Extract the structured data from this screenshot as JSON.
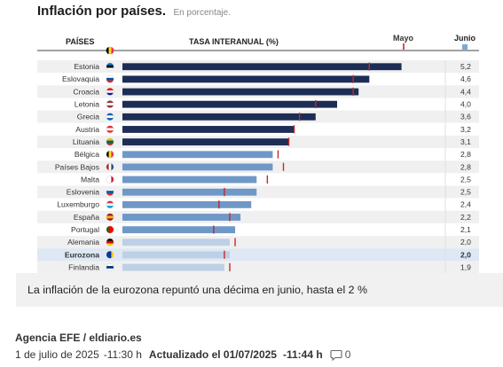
{
  "header": {
    "title": "Inflación por países.",
    "subtitle": "En porcentaje.",
    "col_countries": "PAÍSES",
    "col_rate": "TASA INTERANUAL (%)",
    "col_may": "Mayo",
    "col_june": "Junio"
  },
  "chart_data": {
    "type": "bar",
    "orientation": "horizontal",
    "xlim": [
      0,
      5.4
    ],
    "categories": [
      "Estonia",
      "Eslovaquia",
      "Croacia",
      "Letonia",
      "Grecia",
      "Austria",
      "Lituania",
      "Bélgica",
      "Países Bajos",
      "Malta",
      "Eslovenia",
      "Luxemburgo",
      "España",
      "Portugal",
      "Alemania",
      "Eurozona",
      "Finlandia"
    ],
    "value_labels": [
      "5,2",
      "4,6",
      "4,4",
      "4,0",
      "3,6",
      "3,2",
      "3,1",
      "2,8",
      "2,8",
      "2,5",
      "2,5",
      "2,4",
      "2,2",
      "2,1",
      "2,0",
      "2,0",
      "1,9"
    ],
    "series": [
      {
        "name": "Junio",
        "values": [
          5.2,
          4.6,
          4.4,
          4.0,
          3.6,
          3.2,
          3.1,
          2.8,
          2.8,
          2.5,
          2.5,
          2.4,
          2.2,
          2.1,
          2.0,
          2.0,
          1.9
        ]
      },
      {
        "name": "Mayo",
        "values": [
          4.6,
          4.3,
          4.3,
          3.6,
          3.3,
          3.2,
          3.1,
          2.9,
          3.0,
          2.7,
          1.9,
          1.8,
          2.0,
          1.7,
          2.1,
          1.9,
          2.0
        ]
      }
    ],
    "colors": {
      "high": "#1e2d55",
      "mid": "#6f98c8",
      "low": "#bdd0e6",
      "highlight_row": "#dde8f4",
      "may_marker": "#c62828",
      "june_legend": "#7ea8d8"
    },
    "flags": [
      [
        "#0072ce",
        "#000000",
        "#ffffff"
      ],
      [
        "#ffffff",
        "#0b4ea2",
        "#ee1c25"
      ],
      [
        "#ff0000",
        "#ffffff",
        "#171796"
      ],
      [
        "#9e3039",
        "#ffffff",
        "#9e3039"
      ],
      [
        "#0d5eaf",
        "#ffffff",
        "#0d5eaf"
      ],
      [
        "#ed2939",
        "#ffffff",
        "#ed2939"
      ],
      [
        "#fdb913",
        "#006a44",
        "#c1272d"
      ],
      [
        "#000000",
        "#fdda24",
        "#ef3340"
      ],
      [
        "#ae1c28",
        "#ffffff",
        "#21468b"
      ],
      [
        "#ffffff",
        "#ffffff",
        "#cf142b"
      ],
      [
        "#ffffff",
        "#005da4",
        "#ed1c24"
      ],
      [
        "#ed2939",
        "#ffffff",
        "#00a1de"
      ],
      [
        "#aa151b",
        "#f1bf00",
        "#aa151b"
      ],
      [
        "#006600",
        "#ff0000",
        "#ff0000"
      ],
      [
        "#000000",
        "#dd0000",
        "#ffce00"
      ],
      [
        "#003399",
        "#003399",
        "#ffcc00"
      ],
      [
        "#ffffff",
        "#003580",
        "#ffffff"
      ]
    ],
    "bold_categories": [
      "Eurozona"
    ]
  },
  "caption": "La inflación de la eurozona repuntó una décima en junio, hasta el 2 %",
  "article": {
    "source": "Agencia EFE / eldiario.es",
    "date": "1 de julio de 2025",
    "time": "-11:30 h",
    "updated": "Actualizado el 01/07/2025",
    "updated_time": "-11:44 h",
    "comments": "0",
    "comment_icon": "speech-bubble-icon"
  }
}
